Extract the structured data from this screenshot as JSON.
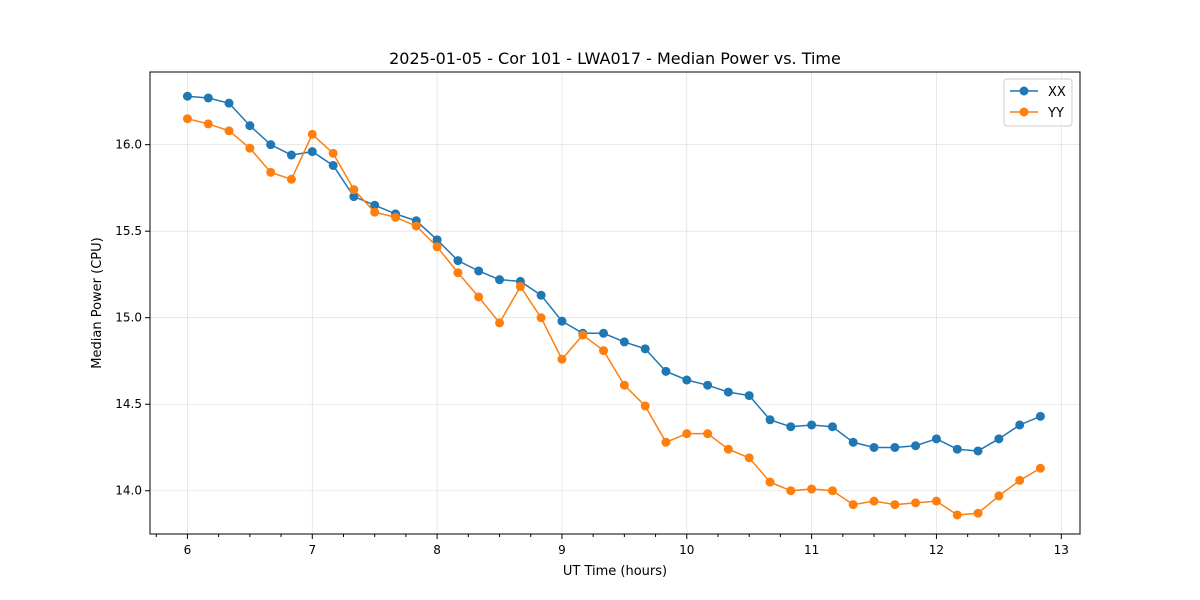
{
  "chart_data": {
    "type": "line",
    "title": "2025-01-05 - Cor 101 - LWA017 - Median Power vs. Time",
    "xlabel": "UT Time (hours)",
    "ylabel": "Median Power (CPU)",
    "xlim": [
      5.7,
      13.15
    ],
    "ylim": [
      13.75,
      16.42
    ],
    "xticks": [
      6,
      7,
      8,
      9,
      10,
      11,
      12,
      13
    ],
    "xtick_labels": [
      "6",
      "7",
      "8",
      "9",
      "10",
      "11",
      "12",
      "13"
    ],
    "yticks": [
      14.0,
      14.5,
      15.0,
      15.5,
      16.0
    ],
    "ytick_labels": [
      "14.0",
      "14.5",
      "15.0",
      "15.5",
      "16.0"
    ],
    "grid": true,
    "legend_position": "top-right",
    "x": [
      6.0,
      6.167,
      6.333,
      6.5,
      6.667,
      6.833,
      7.0,
      7.167,
      7.333,
      7.5,
      7.667,
      7.833,
      8.0,
      8.167,
      8.333,
      8.5,
      8.667,
      8.833,
      9.0,
      9.167,
      9.333,
      9.5,
      9.667,
      9.833,
      10.0,
      10.167,
      10.333,
      10.5,
      10.667,
      10.833,
      11.0,
      11.167,
      11.333,
      11.5,
      11.667,
      11.833,
      12.0,
      12.167,
      12.333,
      12.5,
      12.667,
      12.833
    ],
    "series": [
      {
        "name": "XX",
        "color": "#1f77b4",
        "values": [
          16.28,
          16.27,
          16.24,
          16.11,
          16.0,
          15.94,
          15.96,
          15.88,
          15.7,
          15.65,
          15.6,
          15.56,
          15.45,
          15.33,
          15.27,
          15.22,
          15.21,
          15.13,
          14.98,
          14.91,
          14.91,
          14.86,
          14.82,
          14.69,
          14.64,
          14.61,
          14.57,
          14.55,
          14.41,
          14.37,
          14.38,
          14.37,
          14.28,
          14.25,
          14.25,
          14.26,
          14.3,
          14.24,
          14.23,
          14.3,
          14.38,
          14.43
        ]
      },
      {
        "name": "YY",
        "color": "#ff7f0e",
        "values": [
          16.15,
          16.12,
          16.08,
          15.98,
          15.84,
          15.8,
          16.06,
          15.95,
          15.74,
          15.61,
          15.58,
          15.53,
          15.41,
          15.26,
          15.12,
          14.97,
          15.18,
          15.0,
          14.76,
          14.9,
          14.81,
          14.61,
          14.49,
          14.28,
          14.33,
          14.33,
          14.24,
          14.19,
          14.05,
          14.0,
          14.01,
          14.0,
          13.92,
          13.94,
          13.92,
          13.93,
          13.94,
          13.86,
          13.87,
          13.97,
          14.06,
          14.13
        ]
      }
    ]
  }
}
